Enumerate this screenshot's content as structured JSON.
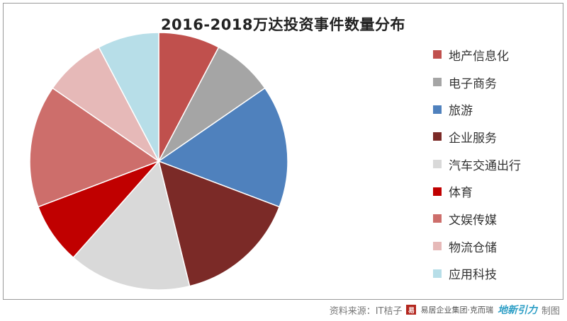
{
  "chart_data": {
    "type": "pie",
    "title": "2016-2018万达投资事件数量分布",
    "slices": [
      {
        "label": "地产信息化",
        "value": 1,
        "color": "#c0504d"
      },
      {
        "label": "电子商务",
        "value": 1,
        "color": "#a5a5a5"
      },
      {
        "label": "旅游",
        "value": 2,
        "color": "#4f81bd"
      },
      {
        "label": "企业服务",
        "value": 2,
        "color": "#7b2a27"
      },
      {
        "label": "汽车交通出行",
        "value": 2,
        "color": "#d9d9d9"
      },
      {
        "label": "体育",
        "value": 1,
        "color": "#c00000"
      },
      {
        "label": "文娱传媒",
        "value": 2,
        "color": "#cd6e6b"
      },
      {
        "label": "物流仓储",
        "value": 1,
        "color": "#e6b9b8"
      },
      {
        "label": "应用科技",
        "value": 1,
        "color": "#b7dee8"
      }
    ],
    "legend_position": "right"
  },
  "footer": {
    "source": "资料来源：IT桔子",
    "logo_mark": "易",
    "logo_text": "易居企业集团·克而瑞",
    "brand": "地新引力",
    "made_by": "制图"
  }
}
